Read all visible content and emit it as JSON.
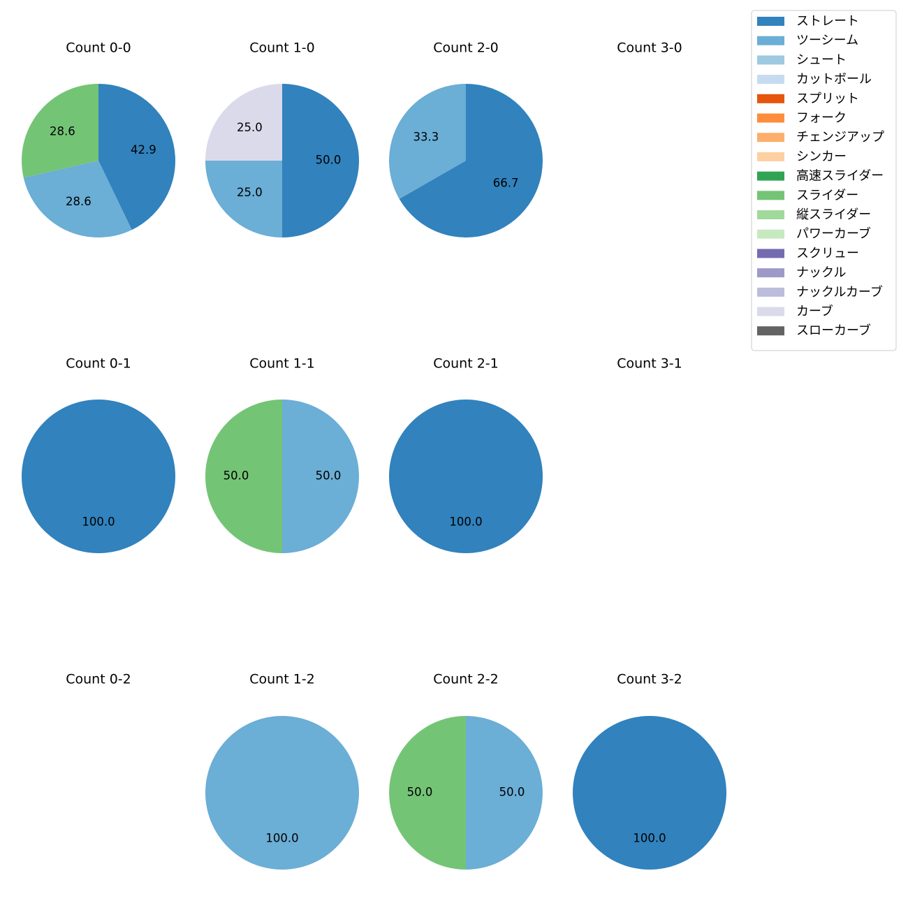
{
  "chart_data": {
    "type": "pie",
    "legend": {
      "placement": "top-right",
      "entries": [
        {
          "name": "ストレート",
          "color": "#3182bd"
        },
        {
          "name": "ツーシーム",
          "color": "#6baed6"
        },
        {
          "name": "シュート",
          "color": "#9ecae1"
        },
        {
          "name": "カットボール",
          "color": "#c6dbef"
        },
        {
          "name": "スプリット",
          "color": "#e6550d"
        },
        {
          "name": "フォーク",
          "color": "#fd8d3c"
        },
        {
          "name": "チェンジアップ",
          "color": "#fdae6b"
        },
        {
          "name": "シンカー",
          "color": "#fdd0a2"
        },
        {
          "name": "高速スライダー",
          "color": "#31a354"
        },
        {
          "name": "スライダー",
          "color": "#74c476"
        },
        {
          "name": "縦スライダー",
          "color": "#a1d99b"
        },
        {
          "name": "パワーカーブ",
          "color": "#c7e9c0"
        },
        {
          "name": "スクリュー",
          "color": "#756bb1"
        },
        {
          "name": "ナックル",
          "color": "#9e9ac8"
        },
        {
          "name": "ナックルカーブ",
          "color": "#bcbddc"
        },
        {
          "name": "カーブ",
          "color": "#dadaeb"
        },
        {
          "name": "スローカーブ",
          "color": "#636363"
        }
      ]
    },
    "pies": [
      {
        "title": "Count 0-0",
        "slices": [
          {
            "pitch": "ストレート",
            "value": 42.9,
            "label": "42.9"
          },
          {
            "pitch": "ツーシーム",
            "value": 28.6,
            "label": "28.6"
          },
          {
            "pitch": "スライダー",
            "value": 28.6,
            "label": "28.6"
          }
        ]
      },
      {
        "title": "Count 1-0",
        "slices": [
          {
            "pitch": "ストレート",
            "value": 50.0,
            "label": "50.0"
          },
          {
            "pitch": "ツーシーム",
            "value": 25.0,
            "label": "25.0"
          },
          {
            "pitch": "カーブ",
            "value": 25.0,
            "label": "25.0"
          }
        ]
      },
      {
        "title": "Count 2-0",
        "slices": [
          {
            "pitch": "ストレート",
            "value": 66.7,
            "label": "66.7"
          },
          {
            "pitch": "ツーシーム",
            "value": 33.3,
            "label": "33.3"
          }
        ]
      },
      {
        "title": "Count 3-0",
        "slices": []
      },
      {
        "title": "Count 0-1",
        "slices": [
          {
            "pitch": "ストレート",
            "value": 100.0,
            "label": "100.0"
          }
        ]
      },
      {
        "title": "Count 1-1",
        "slices": [
          {
            "pitch": "ツーシーム",
            "value": 50.0,
            "label": "50.0"
          },
          {
            "pitch": "スライダー",
            "value": 50.0,
            "label": "50.0"
          }
        ]
      },
      {
        "title": "Count 2-1",
        "slices": [
          {
            "pitch": "ストレート",
            "value": 100.0,
            "label": "100.0"
          }
        ]
      },
      {
        "title": "Count 3-1",
        "slices": []
      },
      {
        "title": "Count 0-2",
        "slices": []
      },
      {
        "title": "Count 1-2",
        "slices": [
          {
            "pitch": "ツーシーム",
            "value": 100.0,
            "label": "100.0"
          }
        ]
      },
      {
        "title": "Count 2-2",
        "slices": [
          {
            "pitch": "ツーシーム",
            "value": 50.0,
            "label": "50.0"
          },
          {
            "pitch": "スライダー",
            "value": 50.0,
            "label": "50.0"
          }
        ]
      },
      {
        "title": "Count 3-2",
        "slices": [
          {
            "pitch": "ストレート",
            "value": 100.0,
            "label": "100.0"
          }
        ]
      }
    ]
  }
}
